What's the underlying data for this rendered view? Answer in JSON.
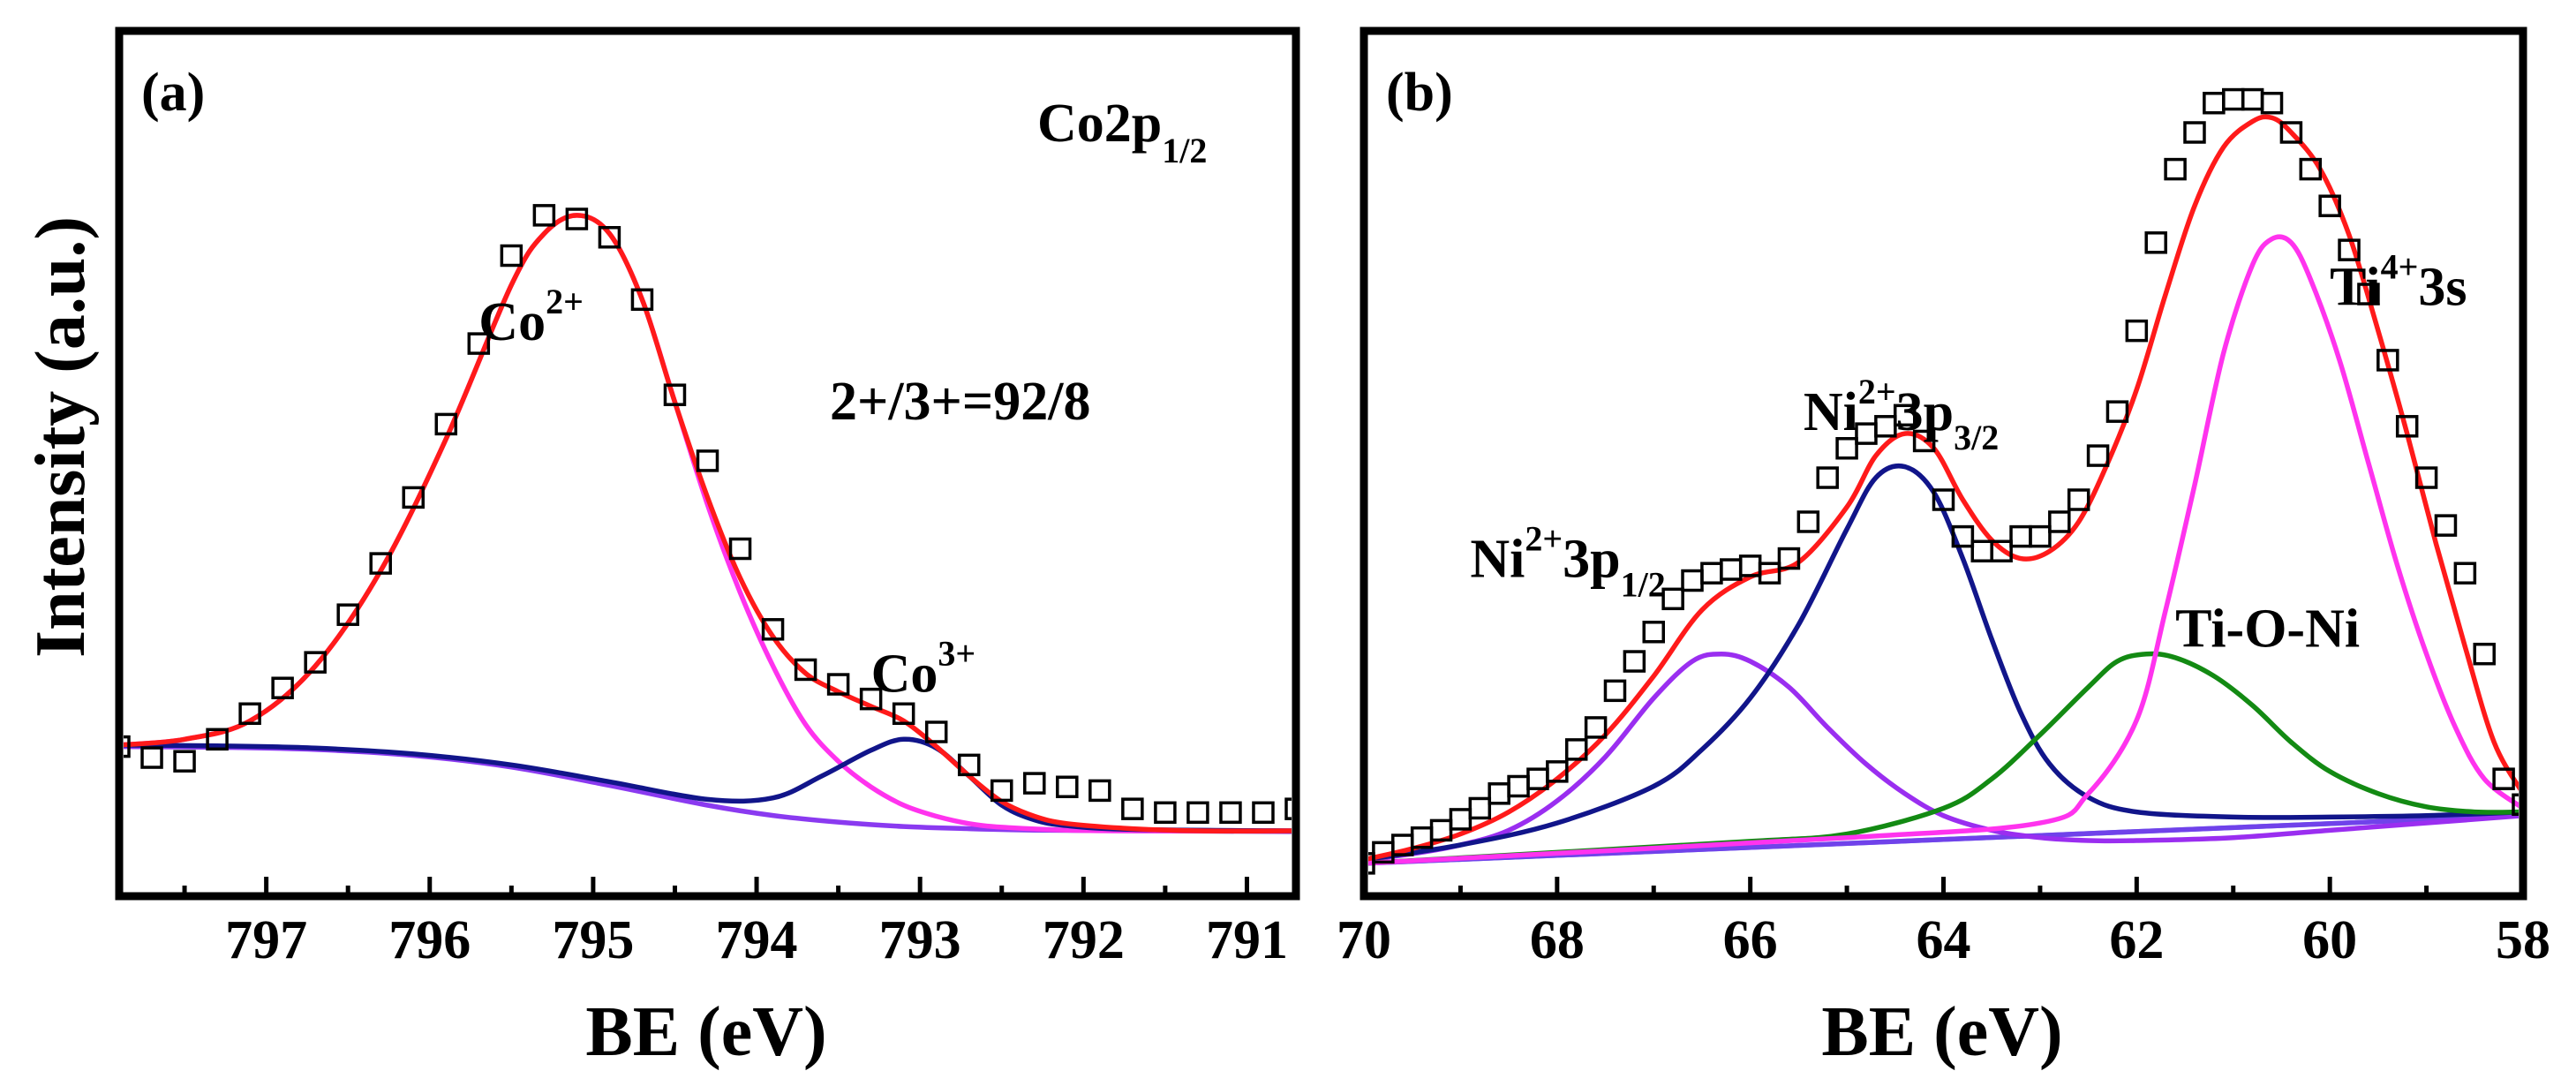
{
  "colors": {
    "fit": "#ff1a1a",
    "component_magenta": "#ff33ee",
    "component_navy": "#11158a",
    "component_purple": "#9a2ef0",
    "component_green": "#138a13",
    "baseline_blue": "#3355dd",
    "baseline_violet": "#8a3af0",
    "markers": "#000000"
  },
  "ylabel": "Intensity (a.u.)",
  "chart_data": [
    {
      "type": "line",
      "panel": "(a)",
      "title": "Co2p1/2",
      "title_main": "Co2p",
      "title_sub": "1/2",
      "ratio_text": "2+/3+=92/8",
      "xlabel": "BE (eV)",
      "ylabel": "Intensity (a.u.)",
      "xlim": [
        797.9,
        790.7
      ],
      "x_reversed": true,
      "ylim": [
        0,
        1
      ],
      "xticks": [
        797,
        796,
        795,
        794,
        793,
        792,
        791
      ],
      "y_ticks_shown": false,
      "annotations": [
        {
          "main": "Co",
          "sup": "2+",
          "x": 795.7,
          "y": 0.735
        },
        {
          "main": "Co",
          "sup": "3+",
          "x": 793.3,
          "y": 0.255
        }
      ],
      "series": [
        {
          "kind": "markers",
          "color": "#000000",
          "x": [
            797.9,
            797.7,
            797.5,
            797.3,
            797.1,
            796.9,
            796.7,
            796.5,
            796.3,
            796.1,
            795.9,
            795.7,
            795.5,
            795.3,
            795.1,
            794.9,
            794.7,
            794.5,
            794.3,
            794.1,
            793.9,
            793.7,
            793.5,
            793.3,
            793.1,
            792.9,
            792.7,
            792.5,
            792.3,
            792.1,
            791.9,
            791.7,
            791.5,
            791.3,
            791.1,
            790.9,
            790.7
          ],
          "y": [
            0.18,
            0.165,
            0.16,
            0.19,
            0.225,
            0.26,
            0.295,
            0.36,
            0.43,
            0.52,
            0.62,
            0.73,
            0.85,
            0.905,
            0.9,
            0.875,
            0.79,
            0.66,
            0.57,
            0.45,
            0.34,
            0.285,
            0.265,
            0.245,
            0.225,
            0.2,
            0.155,
            0.12,
            0.13,
            0.125,
            0.12,
            0.095,
            0.09,
            0.09,
            0.09,
            0.09,
            0.095
          ]
        },
        {
          "kind": "fit",
          "color": "#ff1a1a",
          "x": [
            797.9,
            797.5,
            797.1,
            796.7,
            796.3,
            795.9,
            795.5,
            795.3,
            795.1,
            794.9,
            794.7,
            794.5,
            794.3,
            794.1,
            793.9,
            793.7,
            793.5,
            793.3,
            793.1,
            792.9,
            792.7,
            792.5,
            792.3,
            792.1,
            791.7,
            791.3,
            790.7
          ],
          "y": [
            0.182,
            0.19,
            0.215,
            0.29,
            0.42,
            0.6,
            0.81,
            0.88,
            0.905,
            0.88,
            0.79,
            0.65,
            0.52,
            0.41,
            0.33,
            0.28,
            0.255,
            0.235,
            0.215,
            0.18,
            0.14,
            0.105,
            0.085,
            0.075,
            0.068,
            0.065,
            0.065
          ]
        },
        {
          "kind": "component",
          "name": "Co2+",
          "color": "#ff33ee",
          "x": [
            797.9,
            797.5,
            797.1,
            796.7,
            796.3,
            795.9,
            795.5,
            795.3,
            795.1,
            794.9,
            794.7,
            794.5,
            794.3,
            794.1,
            793.9,
            793.7,
            793.5,
            793.3,
            793.1,
            792.9,
            792.7,
            792.5,
            792.1,
            791.7,
            790.7
          ],
          "y": [
            0.182,
            0.19,
            0.215,
            0.29,
            0.42,
            0.6,
            0.81,
            0.88,
            0.905,
            0.88,
            0.79,
            0.65,
            0.51,
            0.39,
            0.29,
            0.21,
            0.16,
            0.125,
            0.1,
            0.085,
            0.075,
            0.07,
            0.066,
            0.065,
            0.065
          ]
        },
        {
          "kind": "component",
          "name": "Co3+",
          "color": "#11158a",
          "x": [
            797.9,
            797.3,
            796.7,
            796.1,
            795.5,
            794.9,
            794.3,
            793.9,
            793.6,
            793.3,
            793.1,
            792.9,
            792.7,
            792.5,
            792.3,
            792.1,
            791.7,
            790.7
          ],
          "y": [
            0.182,
            0.181,
            0.178,
            0.17,
            0.155,
            0.132,
            0.108,
            0.11,
            0.14,
            0.175,
            0.19,
            0.178,
            0.14,
            0.1,
            0.08,
            0.072,
            0.067,
            0.065
          ]
        },
        {
          "kind": "baseline",
          "color": "#8a3af0",
          "x": [
            797.9,
            797.3,
            796.7,
            796.1,
            795.5,
            794.9,
            794.3,
            793.9,
            793.5,
            793.1,
            792.7,
            792.3,
            791.7,
            790.7
          ],
          "y": [
            0.18,
            0.179,
            0.176,
            0.168,
            0.152,
            0.127,
            0.1,
            0.086,
            0.077,
            0.071,
            0.068,
            0.066,
            0.065,
            0.064
          ]
        }
      ]
    },
    {
      "type": "line",
      "panel": "(b)",
      "xlabel": "BE (eV)",
      "xlim": [
        70,
        58
      ],
      "x_reversed": true,
      "ylim": [
        0,
        1
      ],
      "xticks": [
        70,
        68,
        66,
        64,
        62,
        60,
        58
      ],
      "y_ticks_shown": false,
      "annotations": [
        {
          "main": "Ni",
          "sup": "2+",
          "tail": "3p",
          "sub": "1/2",
          "x": 68.9,
          "y": 0.395
        },
        {
          "main": "Ni",
          "sup": "2+",
          "tail": "3p",
          "sub": "3/2",
          "x": 65.45,
          "y": 0.595
        },
        {
          "main": "Ti-O-Ni",
          "x": 61.6,
          "y": 0.3
        },
        {
          "main": "Ti",
          "sup": "4+",
          "tail": "3s",
          "x": 60.0,
          "y": 0.765
        }
      ],
      "series": [
        {
          "kind": "markers",
          "color": "#000000",
          "x": [
            70.0,
            69.8,
            69.6,
            69.4,
            69.2,
            69.0,
            68.8,
            68.6,
            68.4,
            68.2,
            68.0,
            67.8,
            67.6,
            67.4,
            67.2,
            67.0,
            66.8,
            66.6,
            66.4,
            66.2,
            66.0,
            65.8,
            65.6,
            65.4,
            65.2,
            65.0,
            64.8,
            64.6,
            64.4,
            64.2,
            64.0,
            63.8,
            63.6,
            63.4,
            63.2,
            63.0,
            62.8,
            62.6,
            62.4,
            62.2,
            62.0,
            61.8,
            61.6,
            61.4,
            61.2,
            61.0,
            60.8,
            60.6,
            60.4,
            60.2,
            60.0,
            59.8,
            59.6,
            59.4,
            59.2,
            59.0,
            58.8,
            58.6,
            58.4,
            58.2,
            58.0
          ],
          "y": [
            0.005,
            0.02,
            0.03,
            0.04,
            0.05,
            0.065,
            0.08,
            0.1,
            0.11,
            0.12,
            0.13,
            0.16,
            0.19,
            0.24,
            0.28,
            0.32,
            0.365,
            0.39,
            0.4,
            0.405,
            0.41,
            0.4,
            0.42,
            0.47,
            0.53,
            0.57,
            0.59,
            0.6,
            0.615,
            0.58,
            0.5,
            0.45,
            0.43,
            0.43,
            0.45,
            0.45,
            0.47,
            0.5,
            0.56,
            0.62,
            0.73,
            0.85,
            0.95,
            1.0,
            1.04,
            1.045,
            1.045,
            1.04,
            1.0,
            0.95,
            0.9,
            0.84,
            0.78,
            0.69,
            0.6,
            0.53,
            0.465,
            0.4,
            0.29,
            0.12,
            0.085
          ]
        },
        {
          "kind": "fit",
          "color": "#ff1a1a",
          "x": [
            70,
            69.5,
            69.0,
            68.5,
            68.0,
            67.5,
            67.0,
            66.5,
            66.0,
            65.5,
            65.0,
            64.7,
            64.4,
            64.1,
            63.8,
            63.5,
            63.2,
            62.9,
            62.6,
            62.3,
            62.0,
            61.7,
            61.4,
            61.1,
            60.8,
            60.6,
            60.4,
            60.1,
            59.8,
            59.5,
            59.2,
            58.9,
            58.6,
            58.3,
            58.0
          ],
          "y": [
            0.01,
            0.025,
            0.045,
            0.075,
            0.12,
            0.18,
            0.26,
            0.35,
            0.395,
            0.415,
            0.49,
            0.56,
            0.59,
            0.57,
            0.5,
            0.445,
            0.42,
            0.43,
            0.47,
            0.55,
            0.65,
            0.78,
            0.9,
            0.98,
            1.015,
            1.02,
            1.0,
            0.95,
            0.86,
            0.73,
            0.59,
            0.44,
            0.3,
            0.17,
            0.1
          ]
        },
        {
          "kind": "component",
          "name": "Ni2+ 3p1/2",
          "color": "#9a2ef0",
          "x": [
            70,
            69.5,
            69.0,
            68.5,
            68.0,
            67.5,
            67.0,
            66.6,
            66.3,
            66.0,
            65.6,
            65.2,
            64.8,
            64.4,
            64.0,
            63.5,
            63.0,
            62.5,
            62.0,
            61.0,
            60.0,
            58.0
          ],
          "y": [
            0.01,
            0.018,
            0.03,
            0.05,
            0.09,
            0.15,
            0.23,
            0.28,
            0.29,
            0.28,
            0.245,
            0.19,
            0.14,
            0.1,
            0.07,
            0.05,
            0.04,
            0.036,
            0.036,
            0.04,
            0.05,
            0.07
          ]
        },
        {
          "kind": "component",
          "name": "Ni2+ 3p3/2",
          "color": "#11158a",
          "x": [
            70,
            69.0,
            68.0,
            67.0,
            66.5,
            66.0,
            65.5,
            65.0,
            64.7,
            64.4,
            64.1,
            63.8,
            63.5,
            63.2,
            62.9,
            62.5,
            62.0,
            61.0,
            60.0,
            59.0,
            58.0
          ],
          "y": [
            0.01,
            0.03,
            0.06,
            0.11,
            0.16,
            0.23,
            0.33,
            0.46,
            0.53,
            0.545,
            0.51,
            0.42,
            0.31,
            0.21,
            0.14,
            0.095,
            0.075,
            0.068,
            0.068,
            0.07,
            0.075
          ]
        },
        {
          "kind": "component",
          "name": "Ti-O-Ni",
          "color": "#138a13",
          "x": [
            70,
            68.0,
            66.0,
            65.0,
            64.0,
            63.5,
            63.0,
            62.5,
            62.2,
            61.9,
            61.6,
            61.2,
            60.8,
            60.4,
            60.0,
            59.5,
            59.0,
            58.5,
            58.0
          ],
          "y": [
            0.005,
            0.02,
            0.035,
            0.045,
            0.08,
            0.12,
            0.18,
            0.245,
            0.28,
            0.29,
            0.285,
            0.26,
            0.22,
            0.17,
            0.13,
            0.1,
            0.082,
            0.075,
            0.075
          ]
        },
        {
          "kind": "component",
          "name": "Ti4+ 3s",
          "color": "#ff33ee",
          "x": [
            70,
            65.0,
            63.0,
            62.5,
            62.0,
            61.7,
            61.4,
            61.1,
            60.8,
            60.6,
            60.4,
            60.2,
            59.9,
            59.6,
            59.3,
            59.0,
            58.7,
            58.4,
            58.0
          ],
          "y": [
            0.005,
            0.04,
            0.06,
            0.1,
            0.2,
            0.35,
            0.52,
            0.7,
            0.82,
            0.855,
            0.85,
            0.8,
            0.69,
            0.55,
            0.41,
            0.29,
            0.19,
            0.12,
            0.08
          ]
        },
        {
          "kind": "baseline",
          "color": "#3355dd",
          "x": [
            70,
            58
          ],
          "y": [
            0.005,
            0.07
          ]
        }
      ]
    }
  ]
}
